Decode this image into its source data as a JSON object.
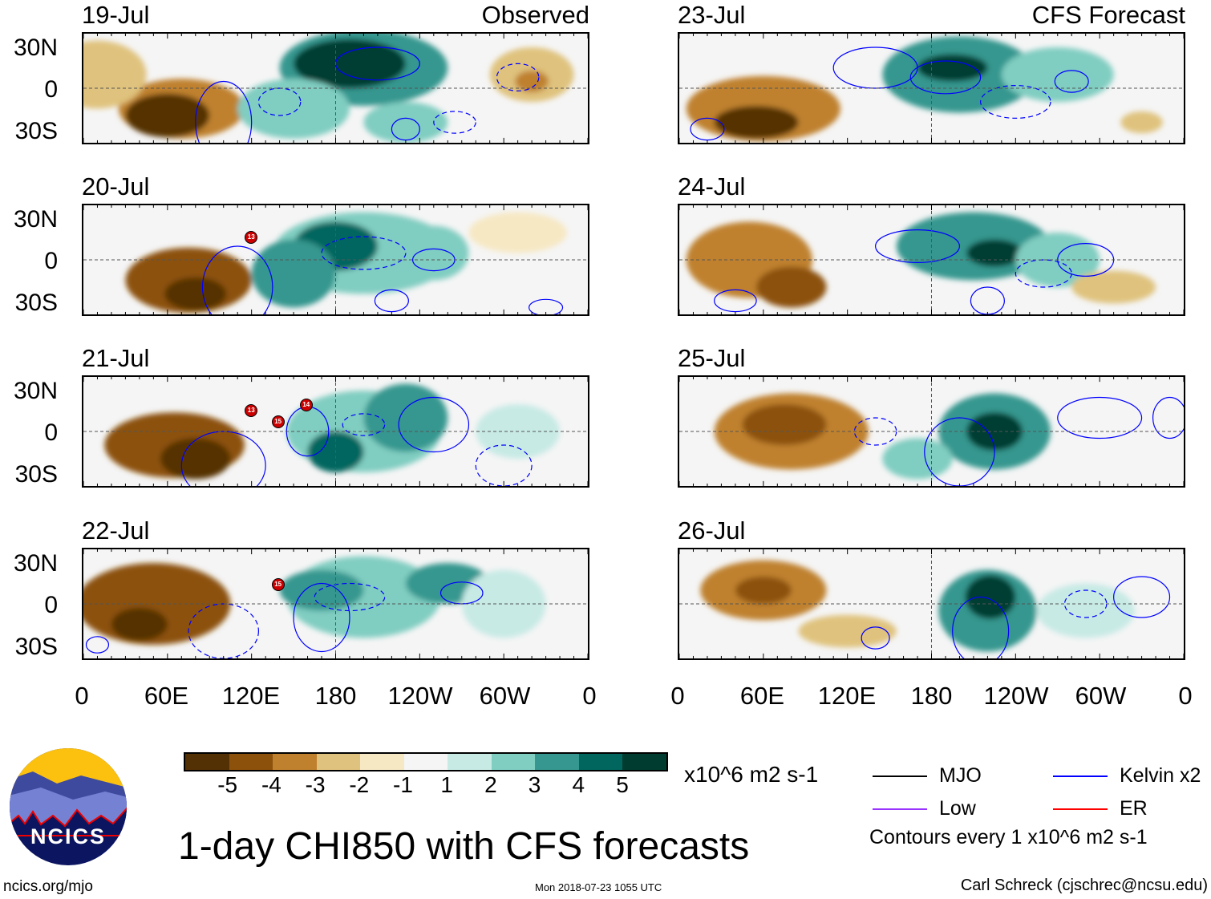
{
  "title": "1-day CHI850 with CFS forecasts",
  "left_header": "Observed",
  "right_header": "CFS Forecast",
  "panels": [
    {
      "date": "19-Jul",
      "storms": []
    },
    {
      "date": "20-Jul",
      "storms": [
        "13"
      ]
    },
    {
      "date": "21-Jul",
      "storms": [
        "13",
        "15",
        "14"
      ]
    },
    {
      "date": "22-Jul",
      "storms": [
        "15"
      ]
    },
    {
      "date": "23-Jul",
      "storms": []
    },
    {
      "date": "24-Jul",
      "storms": []
    },
    {
      "date": "25-Jul",
      "storms": []
    },
    {
      "date": "26-Jul",
      "storms": []
    }
  ],
  "lat_labels": [
    "30N",
    "0",
    "30S"
  ],
  "lon_labels": [
    "0",
    "60E",
    "120E",
    "180",
    "120W",
    "60W",
    "0"
  ],
  "colorbar": {
    "colors": [
      "#543005",
      "#8c510a",
      "#bf812d",
      "#dfc27d",
      "#f6e8c3",
      "#f5f5f5",
      "#c7eae5",
      "#80cdc1",
      "#35978f",
      "#01665e",
      "#003c30"
    ],
    "labels": [
      "-5",
      "-4",
      "-3",
      "-2",
      "-1",
      "1",
      "2",
      "3",
      "4",
      "5"
    ],
    "units": "x10^6 m2 s-1"
  },
  "legend": {
    "items": [
      {
        "label": "MJO",
        "color": "#000000"
      },
      {
        "label": "Kelvin x2",
        "color": "#0000ff"
      },
      {
        "label": "Low",
        "color": "#9933ff"
      },
      {
        "label": "ER",
        "color": "#ff0000"
      }
    ],
    "note": "Contours every 1 x10^6 m2 s-1"
  },
  "logo_text": "NCICS",
  "footer": {
    "left": "ncics.org/mjo",
    "center": "Mon 2018-07-23 1055 UTC",
    "right": "Carl Schreck (cjschrec@ncsu.edu)"
  }
}
